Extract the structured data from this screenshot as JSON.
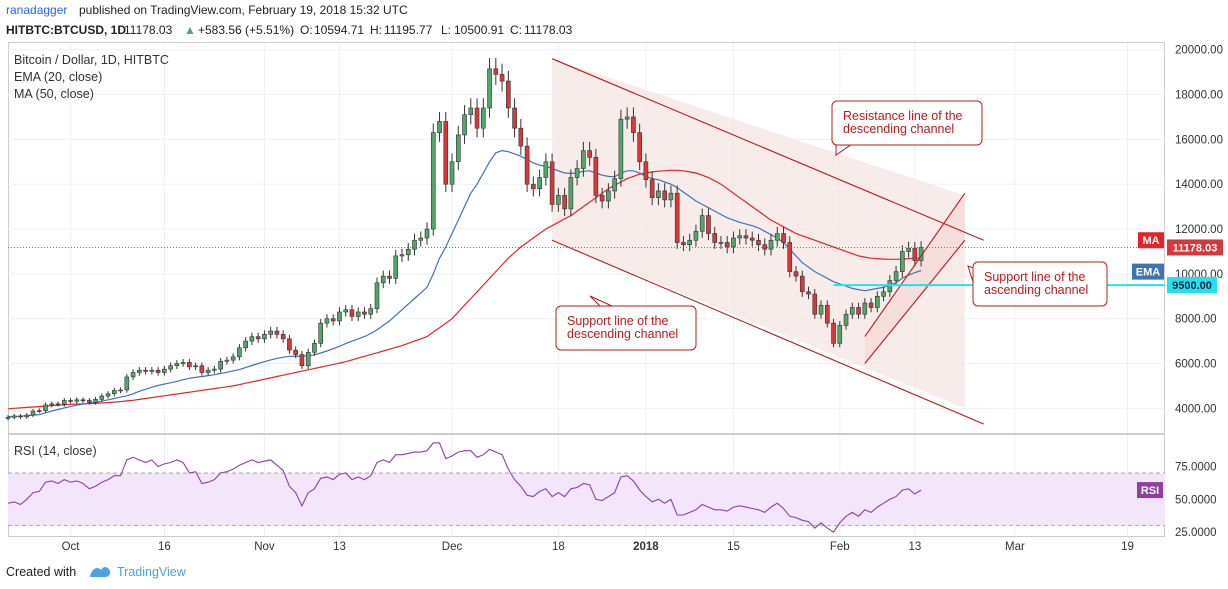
{
  "header": {
    "author": "ranadagger",
    "published_text": "published on TradingView.com, February 19, 2018 15:32 UTC"
  },
  "quote": {
    "symbol": "HITBTC:BTCUSD, 1D",
    "last": "11178.03",
    "change": "+583.56 (+5.51%)",
    "open": "10594.71",
    "high": "11195.77",
    "low": "10500.91",
    "close": "11178.03",
    "open_label": "O:",
    "high_label": "H:",
    "low_label": "L:",
    "close_label": "C:"
  },
  "legend": {
    "title": "Bitcoin / Dollar, 1D, HITBTC",
    "ema": "EMA (20, close)",
    "ma": "MA (50, close)",
    "rsi": "RSI (14, close)"
  },
  "price_axis_labels": {
    "ma": "MA",
    "ema": "EMA",
    "last": "11178.03",
    "level": "9500.00",
    "rsi": "RSI"
  },
  "annotations": {
    "resistance": [
      "Resistance line of the",
      "descending channel"
    ],
    "support_desc": [
      "Support line of the",
      "descending channel"
    ],
    "support_asc": [
      "Support line of the",
      "ascending channel"
    ]
  },
  "footer": {
    "created_with": "Created with",
    "brand": "TradingView"
  },
  "colors": {
    "up": "#53a66b",
    "down": "#d5393b",
    "ema": "#3f74b3",
    "ma": "#e0262a",
    "channel_line": "#b71c1c",
    "level_line": "#23e0f0",
    "rsi_line": "#8f3fa2"
  },
  "chart_data": [
    {
      "type": "candlestick",
      "title": "Bitcoin / Dollar, 1D, HITBTC",
      "y_ticks": [
        4000,
        6000,
        8000,
        10000,
        12000,
        14000,
        16000,
        18000,
        20000
      ],
      "y_tick_labels": [
        "4000.00",
        "6000.00",
        "8000.00",
        "10000.00",
        "12000.00",
        "14000.00",
        "16000.00",
        "18000.00",
        "20000.00"
      ],
      "ylim": [
        2900,
        20300
      ],
      "x_tick_labels": [
        "Oct",
        "16",
        "Nov",
        "13",
        "Dec",
        "18",
        "2018",
        "15",
        "Feb",
        "13",
        "Mar",
        "19"
      ],
      "x_tick_dates": [
        "2017-10-01",
        "2017-10-16",
        "2017-11-01",
        "2017-11-13",
        "2017-12-01",
        "2017-12-18",
        "2018-01-01",
        "2018-01-15",
        "2018-02-01",
        "2018-02-13",
        "2018-03-01",
        "2018-03-19"
      ],
      "xlim": [
        "2017-09-21",
        "2018-03-25"
      ],
      "grid": true,
      "candles_start_date": "2017-09-21",
      "close": [
        3600,
        3660,
        3620,
        3700,
        3880,
        3900,
        4150,
        4200,
        4180,
        4350,
        4320,
        4380,
        4350,
        4270,
        4400,
        4550,
        4650,
        4800,
        4820,
        5400,
        5600,
        5700,
        5650,
        5700,
        5600,
        5750,
        5900,
        6000,
        6050,
        5850,
        5900,
        5600,
        5700,
        5750,
        6100,
        6150,
        6300,
        6700,
        7000,
        7200,
        7100,
        7300,
        7450,
        7300,
        7100,
        6600,
        6400,
        5900,
        6500,
        6900,
        7800,
        8000,
        7900,
        8300,
        8400,
        8100,
        8300,
        8200,
        8450,
        9600,
        9900,
        9800,
        10800,
        10850,
        11100,
        11500,
        11600,
        12000,
        16300,
        16800,
        14000,
        15000,
        16200,
        17100,
        17400,
        16500,
        17400,
        19150,
        18900,
        18600,
        17400,
        16500,
        15700,
        14000,
        13800,
        14300,
        15000,
        13100,
        13500,
        12900,
        14300,
        14700,
        15500,
        15200,
        13500,
        13250,
        13700,
        14250,
        16900,
        17000,
        16300,
        15000,
        14200,
        13400,
        13700,
        13300,
        13600,
        11400,
        11300,
        11500,
        11900,
        12600,
        11800,
        11400,
        11400,
        11200,
        11600,
        11700,
        11600,
        11500,
        11300,
        11100,
        11500,
        11800,
        11400,
        10100,
        9900,
        9200,
        9100,
        8200,
        8600,
        7800,
        6900,
        7700,
        8200,
        8500,
        8200,
        8700,
        8500,
        9000,
        9200,
        9700,
        10100,
        11000,
        11150,
        10595,
        11178
      ],
      "series": [
        {
          "name": "EMA (20, close)",
          "values": [
            3630,
            3640,
            3650,
            3670,
            3700,
            3720,
            3800,
            3880,
            3950,
            4020,
            4080,
            4140,
            4190,
            4230,
            4270,
            4320,
            4380,
            4440,
            4500,
            4560,
            4650,
            4760,
            4850,
            4940,
            5020,
            5080,
            5140,
            5200,
            5280,
            5340,
            5380,
            5420,
            5460,
            5500,
            5560,
            5610,
            5670,
            5730,
            5820,
            5910,
            6000,
            6080,
            6160,
            6230,
            6280,
            6320,
            6330,
            6320,
            6350,
            6390,
            6470,
            6560,
            6660,
            6770,
            6890,
            7000,
            7100,
            7200,
            7340,
            7500,
            7700,
            7900,
            8150,
            8400,
            8650,
            8900,
            9150,
            9400,
            10000,
            10700,
            11200,
            11800,
            12400,
            13000,
            13600,
            14000,
            14500,
            15000,
            15400,
            15500,
            15450,
            15350,
            15250,
            15100,
            14950,
            14850,
            14800,
            14700,
            14600,
            14500,
            14480,
            14500,
            14580,
            14600,
            14500,
            14400,
            14350,
            14330,
            14500,
            14600,
            14600,
            14500,
            14350,
            14250,
            14200,
            14100,
            14000,
            13850,
            13650,
            13450,
            13250,
            13100,
            12950,
            12800,
            12650,
            12500,
            12400,
            12300,
            12220,
            12150,
            12050,
            11900,
            11750,
            11600,
            11400,
            11100,
            10800,
            10500,
            10300,
            10100,
            9950,
            9800,
            9650,
            9550,
            9450,
            9350,
            9300,
            9250,
            9300,
            9350,
            9400,
            9500,
            9600,
            9800,
            9950,
            10050,
            10150
          ]
        },
        {
          "name": "MA (50, close)",
          "values": [
            3980,
            4000,
            4020,
            4040,
            4060,
            4080,
            4100,
            4120,
            4140,
            4160,
            4180,
            4190,
            4200,
            4210,
            4220,
            4240,
            4260,
            4280,
            4300,
            4330,
            4360,
            4400,
            4440,
            4480,
            4520,
            4560,
            4600,
            4640,
            4680,
            4720,
            4760,
            4800,
            4840,
            4880,
            4920,
            4960,
            5000,
            5060,
            5120,
            5180,
            5240,
            5300,
            5360,
            5420,
            5480,
            5540,
            5600,
            5660,
            5720,
            5780,
            5840,
            5900,
            5960,
            6020,
            6080,
            6160,
            6240,
            6320,
            6400,
            6480,
            6560,
            6640,
            6720,
            6800,
            6900,
            7000,
            7100,
            7200,
            7400,
            7600,
            7800,
            8000,
            8300,
            8600,
            8900,
            9200,
            9500,
            9800,
            10100,
            10400,
            10700,
            10950,
            11200,
            11400,
            11600,
            11800,
            12000,
            12150,
            12300,
            12450,
            12600,
            12800,
            13000,
            13200,
            13400,
            13600,
            13800,
            13950,
            14100,
            14250,
            14350,
            14450,
            14500,
            14550,
            14580,
            14600,
            14620,
            14620,
            14600,
            14550,
            14500,
            14400,
            14300,
            14150,
            14000,
            13800,
            13600,
            13400,
            13200,
            13000,
            12800,
            12600,
            12400,
            12250,
            12100,
            11950,
            11800,
            11700,
            11600,
            11500,
            11400,
            11300,
            11200,
            11100,
            11000,
            10900,
            10800,
            10750,
            10700,
            10680,
            10660,
            10650,
            10650,
            10660,
            10680,
            10700,
            10700
          ]
        }
      ],
      "horizontal_level": 9500,
      "last_price": 11178.03
    },
    {
      "type": "line",
      "title": "RSI (14, close)",
      "y_ticks": [
        25,
        50,
        75
      ],
      "y_tick_labels": [
        "25.0000",
        "50.0000",
        "75.0000"
      ],
      "ylim": [
        22,
        99
      ],
      "band": [
        30,
        70
      ],
      "series": [
        {
          "name": "RSI (14, close)",
          "values": [
            47,
            48,
            46,
            50,
            55,
            56,
            63,
            64,
            62,
            65,
            63,
            64,
            62,
            58,
            60,
            63,
            65,
            68,
            68,
            80,
            82,
            80,
            78,
            80,
            75,
            77,
            78,
            80,
            78,
            70,
            71,
            62,
            63,
            65,
            70,
            71,
            73,
            76,
            78,
            80,
            78,
            79,
            80,
            76,
            72,
            60,
            55,
            45,
            55,
            58,
            66,
            67,
            65,
            69,
            70,
            65,
            67,
            65,
            68,
            78,
            80,
            78,
            84,
            84,
            85,
            86,
            86,
            87,
            93,
            93,
            81,
            83,
            86,
            87,
            87,
            82,
            84,
            88,
            86,
            84,
            73,
            65,
            60,
            53,
            52,
            56,
            58,
            52,
            55,
            52,
            58,
            59,
            62,
            61,
            50,
            49,
            52,
            55,
            67,
            68,
            64,
            57,
            52,
            48,
            50,
            47,
            50,
            38,
            38,
            40,
            42,
            46,
            44,
            42,
            42,
            41,
            44,
            45,
            44,
            43,
            42,
            40,
            44,
            47,
            43,
            37,
            36,
            34,
            33,
            28,
            32,
            28,
            25,
            32,
            37,
            40,
            37,
            42,
            40,
            44,
            47,
            50,
            52,
            57,
            58,
            54,
            57
          ]
        }
      ]
    }
  ]
}
